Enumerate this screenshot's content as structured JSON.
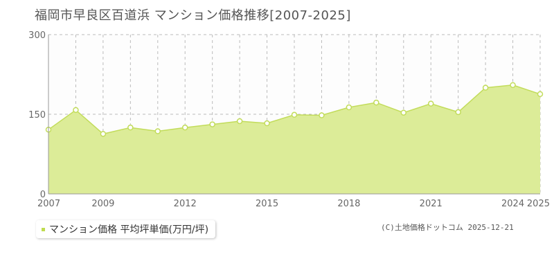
{
  "title": "福岡市早良区百道浜 マンション価格推移[2007-2025]",
  "legend": {
    "label": "マンション価格 平均坪単価(万円/坪)"
  },
  "credit": "(C)土地価格ドットコム 2025-12-21",
  "colors": {
    "fill": "#dcec98",
    "line": "#c2dc5a",
    "point_fill": "#ffffff",
    "grid": "#bbbbbb",
    "axis": "#999999"
  },
  "chart_data": {
    "type": "area",
    "title": "福岡市早良区百道浜 マンション価格推移[2007-2025]",
    "xlabel": "",
    "ylabel": "",
    "ylim": [
      0,
      300
    ],
    "yticks": [
      0,
      150,
      300
    ],
    "xlim": [
      2007,
      2025
    ],
    "xtick_labels": [
      2007,
      2009,
      2012,
      2015,
      2018,
      2021,
      2024,
      2025
    ],
    "series": [
      {
        "name": "マンション価格 平均坪単価(万円/坪)",
        "x": [
          2007,
          2008,
          2009,
          2010,
          2011,
          2012,
          2013,
          2014,
          2015,
          2016,
          2017,
          2018,
          2019,
          2020,
          2021,
          2022,
          2023,
          2024,
          2025
        ],
        "values": [
          121,
          158,
          113,
          125,
          118,
          125,
          131,
          137,
          133,
          149,
          148,
          163,
          172,
          153,
          170,
          154,
          200,
          205,
          188
        ]
      }
    ]
  }
}
